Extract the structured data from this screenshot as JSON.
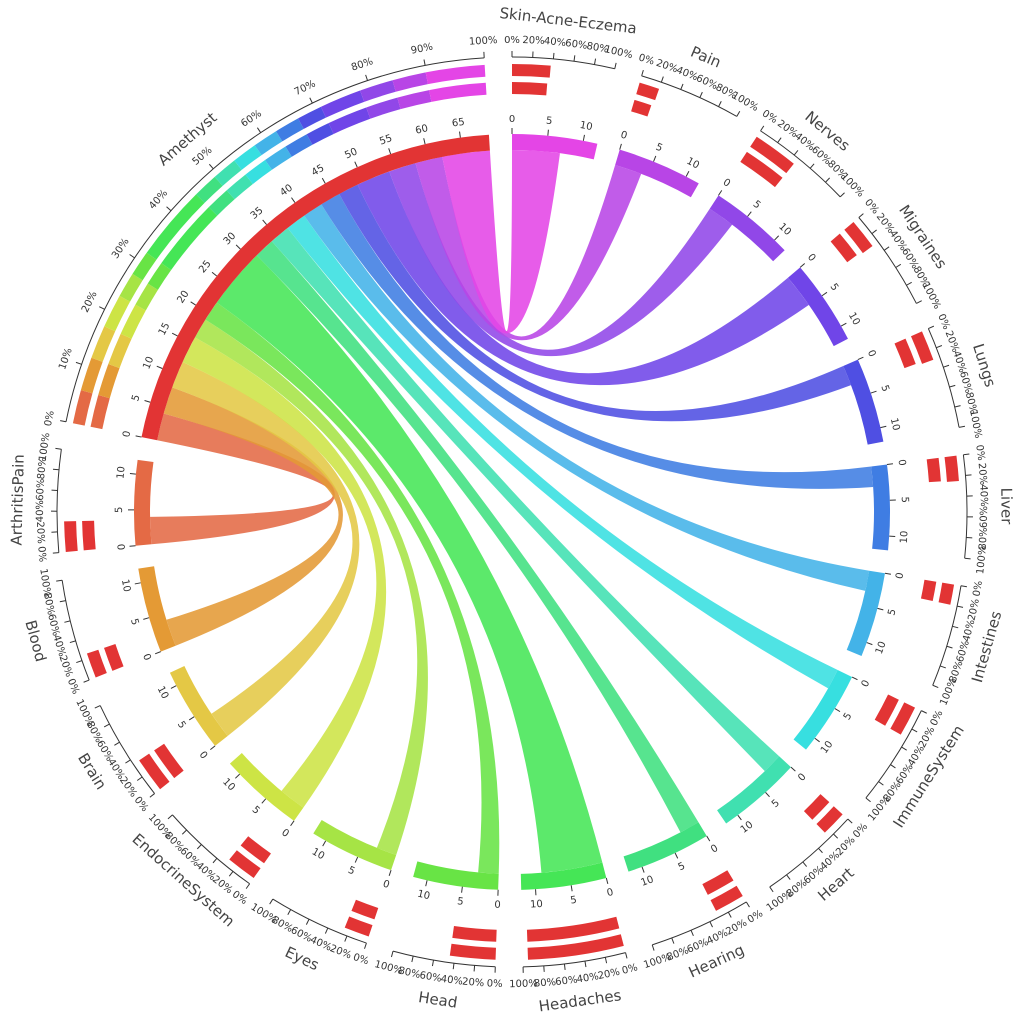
{
  "chart_data": {
    "type": "chord",
    "source": "Amethyst",
    "source_color": "#e23434",
    "nodes": [
      {
        "name": "Skin-Acne-Eczema",
        "color": "#e445e6",
        "value": 7,
        "size": 12,
        "bars": [
          38,
          36
        ]
      },
      {
        "name": "Pain",
        "color": "#b845e6",
        "value": 4,
        "size": 12,
        "bars": [
          20,
          18
        ]
      },
      {
        "name": "Nerves",
        "color": "#9147e8",
        "value": 4,
        "size": 12,
        "bars": [
          45,
          45
        ]
      },
      {
        "name": "Migraines",
        "color": "#7045e8",
        "value": 5,
        "size": 12,
        "bars": [
          30,
          28
        ]
      },
      {
        "name": "Lungs",
        "color": "#4f4fe3",
        "value": 3,
        "size": 12,
        "bars": [
          30,
          28
        ]
      },
      {
        "name": "Liver",
        "color": "#3f7de3",
        "value": 3,
        "size": 12,
        "bars": [
          25,
          24
        ]
      },
      {
        "name": "Intestines",
        "color": "#43b3e8",
        "value": 3,
        "size": 12,
        "bars": [
          20,
          20
        ]
      },
      {
        "name": "ImmuneSystem",
        "color": "#37dfe0",
        "value": 3,
        "size": 12,
        "bars": [
          30,
          30
        ]
      },
      {
        "name": "Heart",
        "color": "#40e0b0",
        "value": 3,
        "size": 12,
        "bars": [
          25,
          25
        ]
      },
      {
        "name": "Hearing",
        "color": "#40e080",
        "value": 3,
        "size": 12,
        "bars": [
          30,
          30
        ]
      },
      {
        "name": "Headaches",
        "color": "#45e656",
        "value": 9,
        "size": 12,
        "bars": [
          95,
          95
        ]
      },
      {
        "name": "Head",
        "color": "#68e445",
        "value": 3,
        "size": 12,
        "bars": [
          45,
          45
        ]
      },
      {
        "name": "Eyes",
        "color": "#a6e445",
        "value": 3,
        "size": 12,
        "bars": [
          25,
          25
        ]
      },
      {
        "name": "EndocrineSystem",
        "color": "#cde445",
        "value": 4,
        "size": 12,
        "bars": [
          30,
          30
        ]
      },
      {
        "name": "Brain",
        "color": "#e4c845",
        "value": 4,
        "size": 12,
        "bars": [
          35,
          35
        ]
      },
      {
        "name": "Blood",
        "color": "#e49a35",
        "value": 4,
        "size": 12,
        "bars": [
          25,
          25
        ]
      },
      {
        "name": "ArthritisPain",
        "color": "#e46a45",
        "value": 4,
        "size": 12,
        "bars": [
          30,
          30
        ]
      }
    ],
    "source_ticks": [
      0,
      5,
      10,
      15,
      20,
      25,
      30,
      35,
      40,
      45,
      50,
      55,
      60,
      65
    ],
    "target_ticks": [
      0,
      5,
      10
    ],
    "percent_ticks": [
      {
        "value": 0,
        "label": "0%"
      },
      {
        "value": 20,
        "label": "20%"
      },
      {
        "value": 40,
        "label": "40%"
      },
      {
        "value": 60,
        "label": "60%"
      },
      {
        "value": 80,
        "label": "80%"
      },
      {
        "value": 100,
        "label": "100%"
      }
    ],
    "source_percent_ticks": [
      {
        "value": 0,
        "label": "0%"
      },
      {
        "value": 10,
        "label": "10%"
      },
      {
        "value": 20,
        "label": "20%"
      },
      {
        "value": 30,
        "label": "30%"
      },
      {
        "value": 40,
        "label": "40%"
      },
      {
        "value": 50,
        "label": "50%"
      },
      {
        "value": 60,
        "label": "60%"
      },
      {
        "value": 70,
        "label": "70%"
      },
      {
        "value": 80,
        "label": "80%"
      },
      {
        "value": 90,
        "label": "90%"
      },
      {
        "value": 100,
        "label": "100%"
      }
    ],
    "bar_color": "#e23434"
  }
}
